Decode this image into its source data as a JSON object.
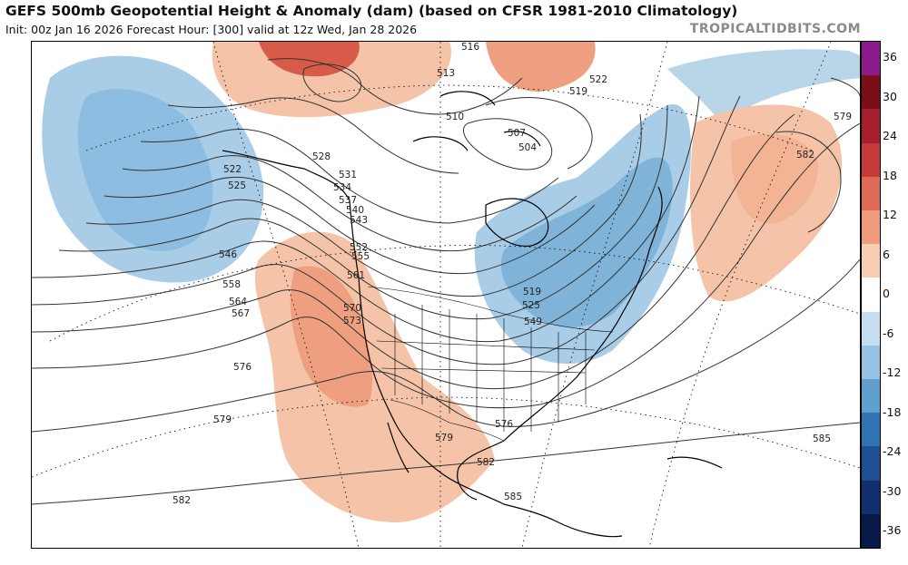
{
  "header": {
    "title": "GEFS 500mb Geopotential Height & Anomaly (dam) (based on CFSR 1981-2010 Climatology)",
    "subtitle": "Init: 00z Jan 16 2026   Forecast Hour: [300]   valid at 12z Wed, Jan 28 2026",
    "brand": "TROPICALTIDBITS.COM"
  },
  "map": {
    "contour_labels": [
      "516",
      "513",
      "510",
      "507",
      "504",
      "519",
      "522",
      "525",
      "528",
      "531",
      "534",
      "537",
      "540",
      "543",
      "546",
      "549",
      "552",
      "555",
      "558",
      "561",
      "564",
      "567",
      "570",
      "573",
      "576",
      "579",
      "582",
      "585"
    ],
    "anomaly_colors": {
      "strong_positive": "#c03434",
      "positive": "#e8826a",
      "weak_positive": "#f5c4a8",
      "weak_negative": "#b8d6e8",
      "negative": "#7fb3d8",
      "strong_negative": "#4b8cc4"
    }
  },
  "colorbar": {
    "labels": [
      "36",
      "30",
      "24",
      "18",
      "12",
      "6",
      "0",
      "-6",
      "-12",
      "-18",
      "-24",
      "-30",
      "-36"
    ],
    "colors": [
      "#8b1a8b",
      "#7a0f1a",
      "#a51e2d",
      "#c63a3a",
      "#de6b55",
      "#ef9b7c",
      "#f7cdb4",
      "#ffffff",
      "#c6dff0",
      "#96c3e3",
      "#5f9fd0",
      "#2f73b3",
      "#1e4f93",
      "#12306d",
      "#0a1a48"
    ]
  }
}
